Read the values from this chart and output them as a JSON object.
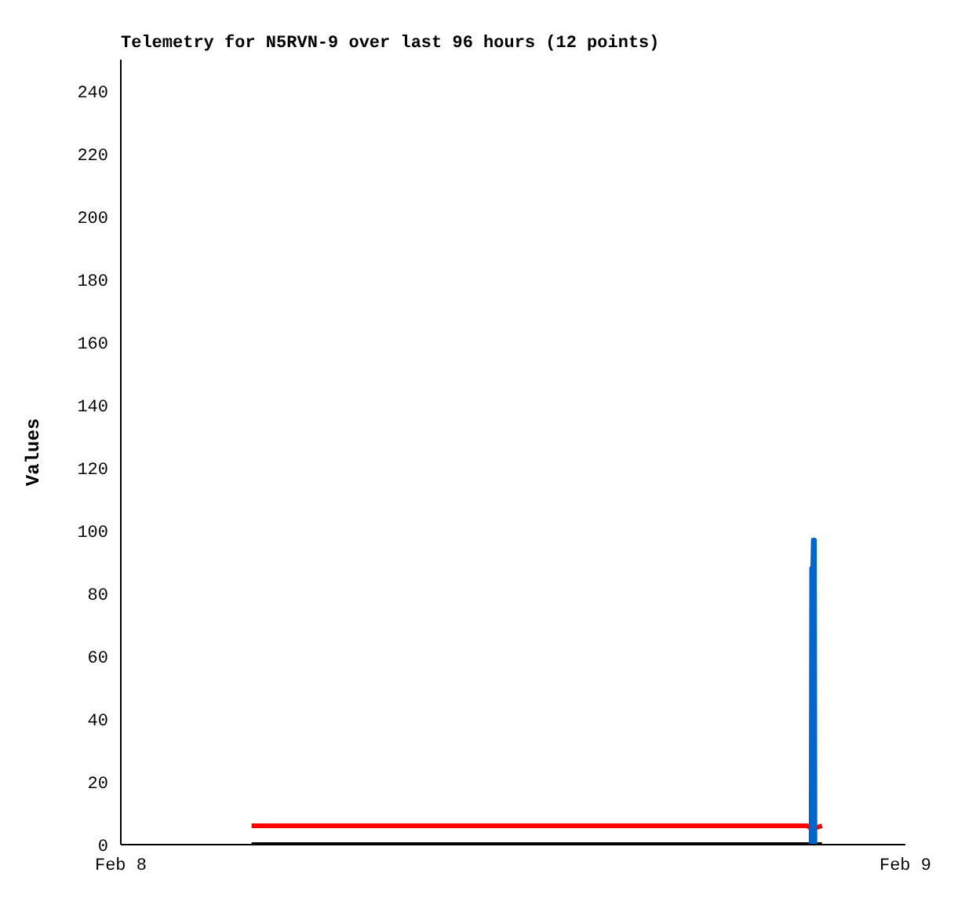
{
  "chart_data": {
    "type": "line",
    "title": "Telemetry for N5RVN-9 over last 96 hours (12 points)",
    "ylabel": "Values",
    "xlim": [
      "--02-08",
      "--02-09"
    ],
    "xticks": [
      {
        "value": "--02-08",
        "label": "Feb 8"
      },
      {
        "value": "--02-09",
        "label": "Feb 9"
      }
    ],
    "ylim": [
      0,
      250
    ],
    "yticks": [
      0,
      20,
      40,
      60,
      80,
      100,
      120,
      140,
      160,
      180,
      200,
      220,
      240
    ],
    "marker": "none",
    "line_style": "solid",
    "series": [
      {
        "color": "#ff0000",
        "x": [
          "--02-08T04:00",
          "--02-08T21:00",
          "--02-08T21:09",
          "--02-08T21:27"
        ],
        "values": [
          6,
          6,
          5,
          6
        ]
      },
      {
        "color": "#000000",
        "x": [
          "--02-08T04:00",
          "--02-08T21:27"
        ],
        "values": [
          0,
          0
        ]
      },
      {
        "color": "#0066cc",
        "x": [
          "--02-08T21:07",
          "--02-08T21:08",
          "--02-08T21:10",
          "--02-08T21:11",
          "--02-08T21:13",
          "--02-08T21:14"
        ],
        "values": [
          0,
          88,
          88,
          97,
          97,
          0
        ]
      }
    ]
  }
}
